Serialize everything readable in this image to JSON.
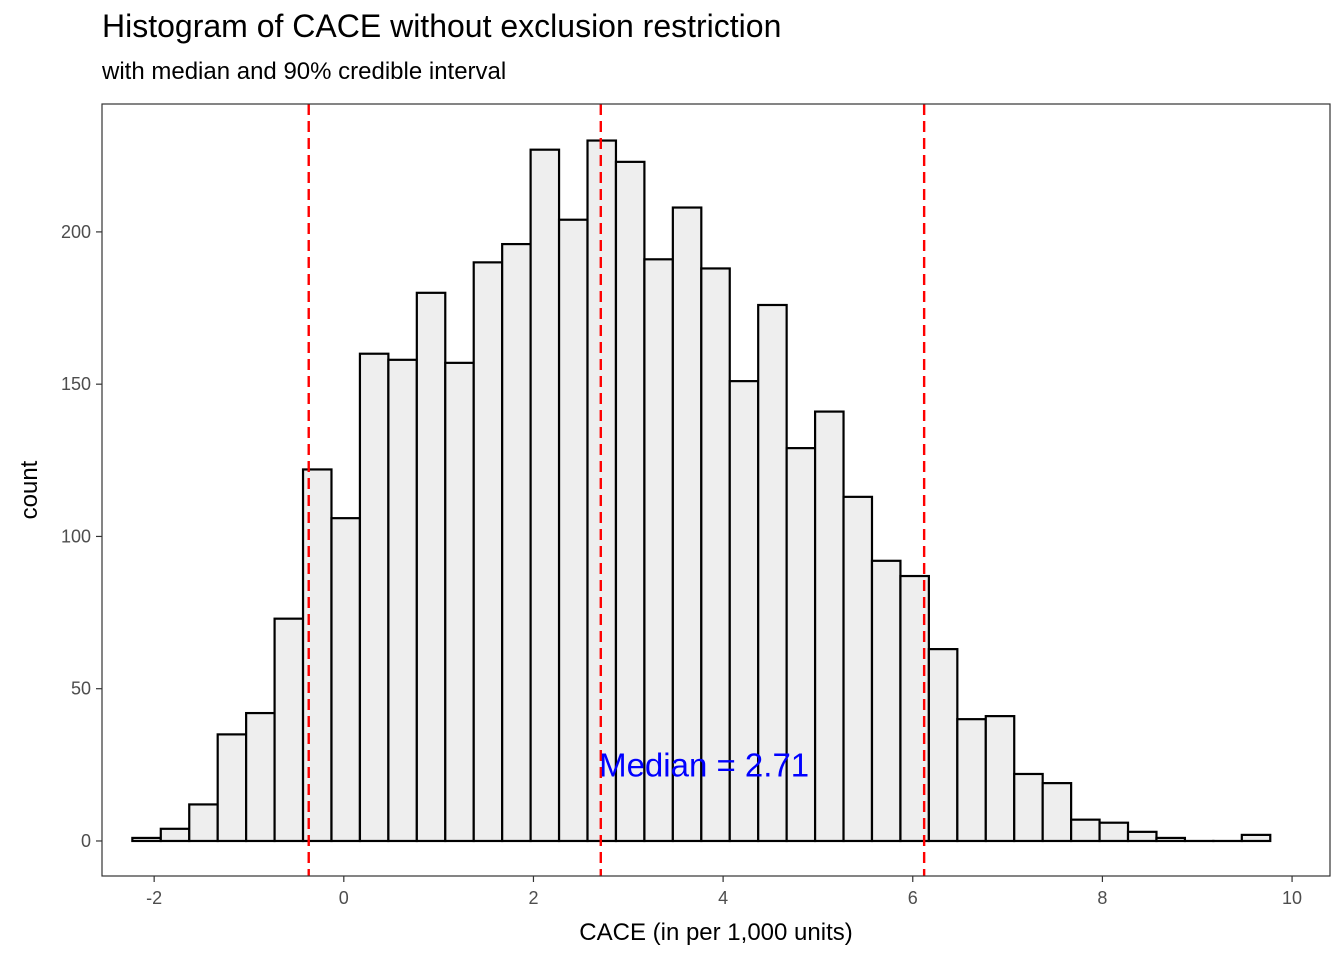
{
  "chart_data": {
    "type": "bar",
    "title": "Histogram of CACE without exclusion restriction",
    "subtitle": "with median and 90% credible interval",
    "xlabel": "CACE (in per 1,000 units)",
    "ylabel": "count",
    "xlim": [
      -2.55,
      10.4
    ],
    "ylim": [
      -11.5,
      242
    ],
    "x_ticks": [
      -2,
      0,
      2,
      4,
      6,
      8,
      10
    ],
    "y_ticks": [
      0,
      50,
      100,
      150,
      200
    ],
    "bin_width": 0.3,
    "bins": [
      {
        "x": -2.08,
        "count": 1
      },
      {
        "x": -1.78,
        "count": 4
      },
      {
        "x": -1.48,
        "count": 12
      },
      {
        "x": -1.18,
        "count": 35
      },
      {
        "x": -0.88,
        "count": 42
      },
      {
        "x": -0.58,
        "count": 73
      },
      {
        "x": -0.28,
        "count": 122
      },
      {
        "x": 0.02,
        "count": 106
      },
      {
        "x": 0.32,
        "count": 160
      },
      {
        "x": 0.62,
        "count": 158
      },
      {
        "x": 0.92,
        "count": 180
      },
      {
        "x": 1.22,
        "count": 157
      },
      {
        "x": 1.52,
        "count": 190
      },
      {
        "x": 1.82,
        "count": 196
      },
      {
        "x": 2.12,
        "count": 227
      },
      {
        "x": 2.42,
        "count": 204
      },
      {
        "x": 2.72,
        "count": 230
      },
      {
        "x": 3.02,
        "count": 223
      },
      {
        "x": 3.32,
        "count": 191
      },
      {
        "x": 3.62,
        "count": 208
      },
      {
        "x": 3.92,
        "count": 188
      },
      {
        "x": 4.22,
        "count": 151
      },
      {
        "x": 4.52,
        "count": 176
      },
      {
        "x": 4.82,
        "count": 129
      },
      {
        "x": 5.12,
        "count": 141
      },
      {
        "x": 5.42,
        "count": 113
      },
      {
        "x": 5.72,
        "count": 92
      },
      {
        "x": 6.02,
        "count": 87
      },
      {
        "x": 6.32,
        "count": 63
      },
      {
        "x": 6.62,
        "count": 40
      },
      {
        "x": 6.92,
        "count": 41
      },
      {
        "x": 7.22,
        "count": 22
      },
      {
        "x": 7.52,
        "count": 19
      },
      {
        "x": 7.82,
        "count": 7
      },
      {
        "x": 8.12,
        "count": 6
      },
      {
        "x": 8.42,
        "count": 3
      },
      {
        "x": 8.72,
        "count": 1
      },
      {
        "x": 9.02,
        "count": 0
      },
      {
        "x": 9.32,
        "count": 0
      },
      {
        "x": 9.62,
        "count": 2
      }
    ],
    "vlines": [
      {
        "x": -0.37,
        "kind": "lower-90"
      },
      {
        "x": 2.71,
        "kind": "median"
      },
      {
        "x": 6.12,
        "kind": "upper-90"
      }
    ],
    "annotation": {
      "text": "Median = 2.71",
      "x": 3.8,
      "y": 24
    },
    "grid": false,
    "colors": {
      "bar_fill": "#eeeeee",
      "bar_stroke": "#000000",
      "vline": "#ff0000",
      "annotation": "#0000ff",
      "axis_text": "#4d4d4d"
    }
  }
}
